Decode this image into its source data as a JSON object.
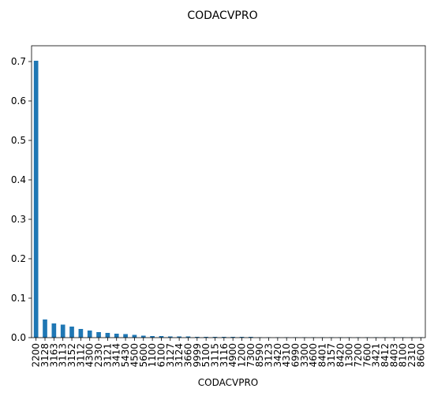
{
  "chart_data": {
    "type": "bar",
    "title": "CODACVPRO",
    "xlabel": "CODACVPRO",
    "ylabel": "",
    "ylim": [
      0,
      0.74
    ],
    "yticks": [
      0.0,
      0.1,
      0.2,
      0.3,
      0.4,
      0.5,
      0.6,
      0.7
    ],
    "ytick_labels": [
      "0.0",
      "0.1",
      "0.2",
      "0.3",
      "0.4",
      "0.5",
      "0.6",
      "0.7"
    ],
    "bar_color": "#1f77b4",
    "grid": false,
    "categories": [
      "2200",
      "3128",
      "3163",
      "3113",
      "3152",
      "3112",
      "4300",
      "2330",
      "3121",
      "3414",
      "5430",
      "4500",
      "5600",
      "1100",
      "6100",
      "3127",
      "3124",
      "3660",
      "9999",
      "5100",
      "3115",
      "3116",
      "4900",
      "1200",
      "7300",
      "8590",
      "3123",
      "3420",
      "4310",
      "6990",
      "3300",
      "4600",
      "8401",
      "3157",
      "8420",
      "1300",
      "7200",
      "7600",
      "3421",
      "8412",
      "8403",
      "8100",
      "2310",
      "8600"
    ],
    "values": [
      0.702,
      0.046,
      0.036,
      0.033,
      0.028,
      0.022,
      0.018,
      0.014,
      0.012,
      0.01,
      0.009,
      0.007,
      0.005,
      0.004,
      0.004,
      0.003,
      0.003,
      0.003,
      0.002,
      0.002,
      0.002,
      0.002,
      0.002,
      0.002,
      0.002,
      0.001,
      0.001,
      0.001,
      0.001,
      0.001,
      0.001,
      0.001,
      0.001,
      0.001,
      0.001,
      0.001,
      0.001,
      0.001,
      0.001,
      0.001,
      0.001,
      0.001,
      0.001,
      0.001
    ]
  }
}
